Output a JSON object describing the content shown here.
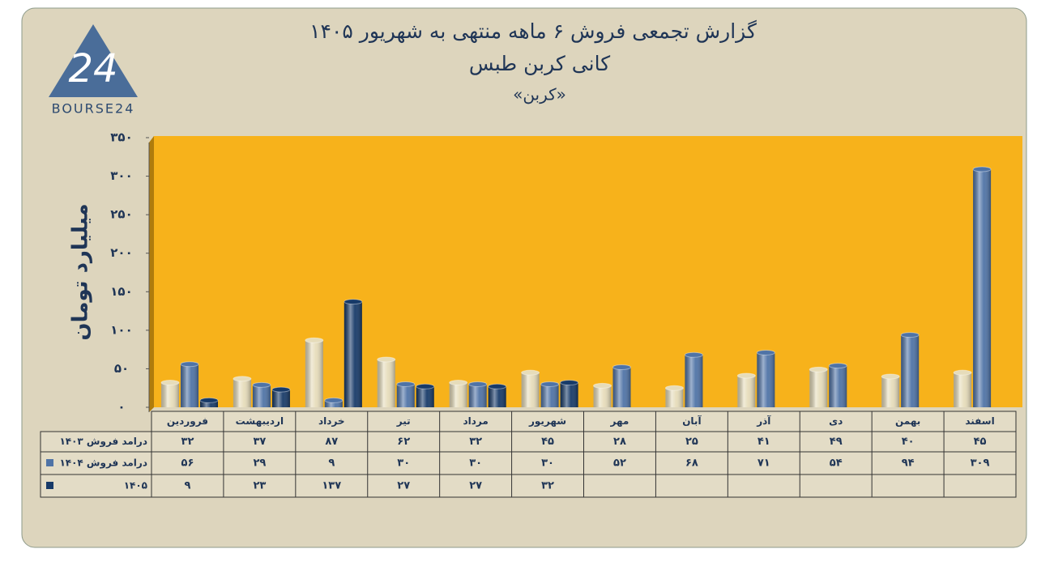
{
  "logo": {
    "mark": "24",
    "text": "BOURSE24"
  },
  "chart_data": {
    "type": "bar",
    "title": "گزارش تجمعی فروش ۶ ماهه منتهی به شهریور ۱۴۰۵",
    "subtitle": "کانی کربن طبس",
    "subtitle2": "«کربن»",
    "y_label": "میلیارد تومان",
    "categories": [
      "فروردین",
      "اردیبهشت",
      "خرداد",
      "تیر",
      "مرداد",
      "شهریور",
      "مهر",
      "آبان",
      "آذر",
      "دی",
      "بهمن",
      "اسفند"
    ],
    "series": [
      {
        "name": "درامد فروش ۱۴۰۳",
        "color": "#e6dcba",
        "values": [
          32,
          37,
          87,
          62,
          32,
          45,
          28,
          25,
          41,
          49,
          40,
          45
        ],
        "value_labels": [
          "۳۲",
          "۳۷",
          "۸۷",
          "۶۲",
          "۳۲",
          "۴۵",
          "۲۸",
          "۲۵",
          "۴۱",
          "۴۹",
          "۴۰",
          "۴۵"
        ]
      },
      {
        "name": "درامد فروش ۱۴۰۴",
        "color": "#4f73a6",
        "values": [
          56,
          29,
          9,
          30,
          30,
          30,
          52,
          68,
          71,
          54,
          94,
          309
        ],
        "value_labels": [
          "۵۶",
          "۲۹",
          "۹",
          "۳۰",
          "۳۰",
          "۳۰",
          "۵۲",
          "۶۸",
          "۷۱",
          "۵۴",
          "۹۴",
          "۳۰۹"
        ]
      },
      {
        "name": "۱۴۰۵",
        "color": "#173a68",
        "values": [
          9,
          23,
          137,
          27,
          27,
          32,
          null,
          null,
          null,
          null,
          null,
          null
        ],
        "value_labels": [
          "۹",
          "۲۳",
          "۱۳۷",
          "۲۷",
          "۲۷",
          "۳۲",
          null,
          null,
          null,
          null,
          null,
          null
        ]
      }
    ],
    "ylim": [
      0,
      350
    ],
    "yticks": [
      {
        "value": 0,
        "label": "۰"
      },
      {
        "value": 50,
        "label": "۵۰"
      },
      {
        "value": 100,
        "label": "۱۰۰"
      },
      {
        "value": 150,
        "label": "۱۵۰"
      },
      {
        "value": 200,
        "label": "۲۰۰"
      },
      {
        "value": 250,
        "label": "۲۵۰"
      },
      {
        "value": 300,
        "label": "۳۰۰"
      },
      {
        "value": 350,
        "label": "۳۵۰"
      }
    ],
    "plot_color": "#f7b21b",
    "grid": false
  }
}
